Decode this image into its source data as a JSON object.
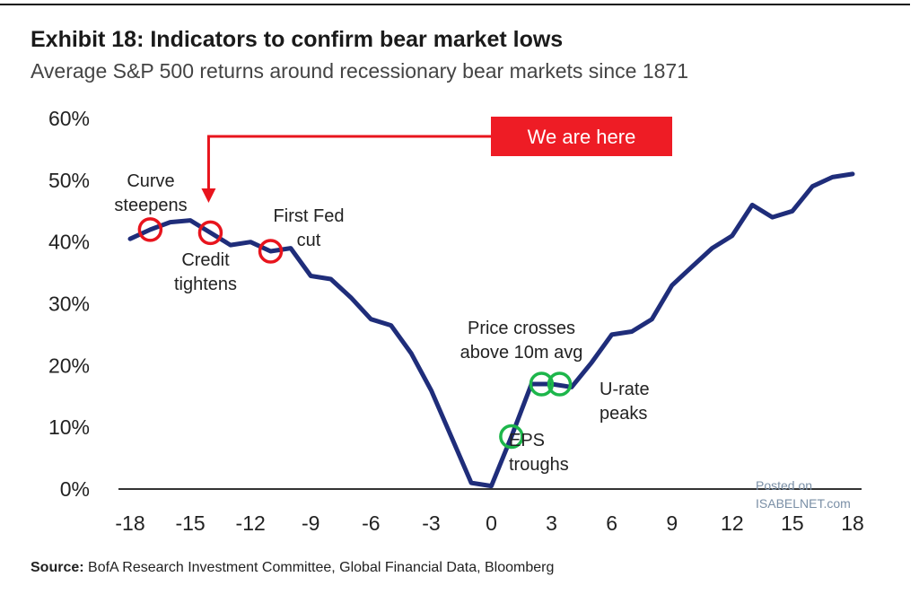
{
  "title": "Exhibit 18: Indicators to confirm bear market lows",
  "subtitle": "Average S&P 500 returns around recessionary bear markets since 1871",
  "source_label": "Source:",
  "source_text": "BofA Research Investment Committee, Global Financial Data, Bloomberg",
  "callout": "We are here",
  "watermark_line1": "Posted on",
  "watermark_line2": "ISABELNET.com",
  "colors": {
    "line": "#1f2d7a",
    "red_marker": "#e8141d",
    "green_marker": "#1db64b",
    "callout_bg": "#ee1c25"
  },
  "chart_data": {
    "type": "line",
    "title": "Exhibit 18: Indicators to confirm bear market lows",
    "subtitle": "Average S&P 500 returns around recessionary bear markets since 1871",
    "xlabel": "",
    "ylabel": "",
    "xlim": [
      -18,
      18
    ],
    "ylim": [
      0,
      60
    ],
    "x_ticks": [
      -18,
      -15,
      -12,
      -9,
      -6,
      -3,
      0,
      3,
      6,
      9,
      12,
      15,
      18
    ],
    "x_tick_labels": [
      "-18",
      "-15",
      "-12",
      "-9",
      "-6",
      "-3",
      "0",
      "3",
      "6",
      "9",
      "12",
      "15",
      "18"
    ],
    "y_ticks": [
      0,
      10,
      20,
      30,
      40,
      50,
      60
    ],
    "y_tick_labels": [
      "0%",
      "10%",
      "20%",
      "30%",
      "40%",
      "50%",
      "60%"
    ],
    "grid": false,
    "series": [
      {
        "x": [
          -18,
          -17,
          -16,
          -15,
          -14,
          -13,
          -12,
          -11,
          -10,
          -9,
          -8,
          -7,
          -6,
          -5,
          -4,
          -3,
          -2,
          -1,
          0,
          1,
          2,
          3,
          4,
          5,
          6,
          7,
          8,
          9,
          10,
          11,
          12,
          13,
          14,
          15,
          16,
          17,
          18
        ],
        "values": [
          40.5,
          42.0,
          43.2,
          43.5,
          41.5,
          39.5,
          40.0,
          38.5,
          39.0,
          34.5,
          34.0,
          31.0,
          27.5,
          26.5,
          22.0,
          16.0,
          8.5,
          1.0,
          0.5,
          8.5,
          17.0,
          17.0,
          16.5,
          20.5,
          25.0,
          25.5,
          27.5,
          33.0,
          36.0,
          39.0,
          41.0,
          46.0,
          44.0,
          45.0,
          49.0,
          50.5,
          51.0
        ]
      }
    ],
    "annotations": [
      {
        "text": [
          "Curve",
          "steepens"
        ],
        "x": -17,
        "y": 42.0,
        "marker": "red"
      },
      {
        "text": [
          "Credit",
          "tightens"
        ],
        "x": -14,
        "y": 41.5,
        "marker": "red"
      },
      {
        "text": [
          "First Fed",
          "cut"
        ],
        "x": -11,
        "y": 38.5,
        "marker": "red"
      },
      {
        "text": [
          "EPS",
          "troughs"
        ],
        "x": 1,
        "y": 8.5,
        "marker": "green"
      },
      {
        "text": [
          "Price crosses",
          "above 10m avg"
        ],
        "x": 2.5,
        "y": 17.0,
        "marker": "green"
      },
      {
        "text": [
          "U-rate",
          "peaks"
        ],
        "x": 3.4,
        "y": 17.0,
        "marker": "green"
      }
    ],
    "callout": {
      "text": "We are here",
      "points_to_x": -14
    }
  }
}
